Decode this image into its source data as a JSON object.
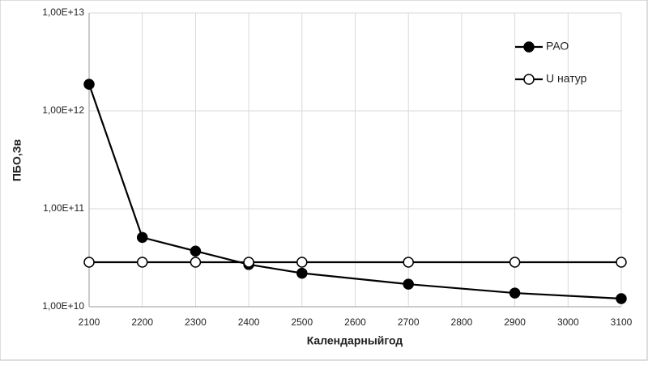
{
  "chart_data": {
    "type": "line",
    "x_label": "Календарныйгод",
    "y_label": "ПБО,Зв",
    "x": [
      2100,
      2200,
      2300,
      2400,
      2500,
      2700,
      2900,
      3100
    ],
    "series": [
      {
        "name": "РАО",
        "color": "#000000",
        "marker_fill": "#000000",
        "values": [
          1870000000000.0,
          51000000000.0,
          37000000000.0,
          27000000000.0,
          22000000000.0,
          17000000000.0,
          13800000000.0,
          12100000000.0
        ]
      },
      {
        "name": "U натур",
        "color": "#000000",
        "marker_fill": "#ffffff",
        "values": [
          28500000000.0,
          28500000000.0,
          28500000000.0,
          28500000000.0,
          28500000000.0,
          28500000000.0,
          28500000000.0,
          28500000000.0
        ]
      }
    ],
    "xlim": [
      2100,
      3100
    ],
    "xticks": [
      2100,
      2200,
      2300,
      2400,
      2500,
      2600,
      2700,
      2800,
      2900,
      3000,
      3100
    ],
    "ylim": [
      10000000000.0,
      10000000000000.0
    ],
    "log_y": true,
    "yticks": [
      {
        "value": 10000000000.0,
        "label": "1,00E+10"
      },
      {
        "value": 100000000000.0,
        "label": "1,00E+11"
      },
      {
        "value": 1000000000000.0,
        "label": "1,00E+12"
      },
      {
        "value": 10000000000000.0,
        "label": "1,00E+13"
      }
    ],
    "grid": true,
    "legend": "top-right"
  }
}
